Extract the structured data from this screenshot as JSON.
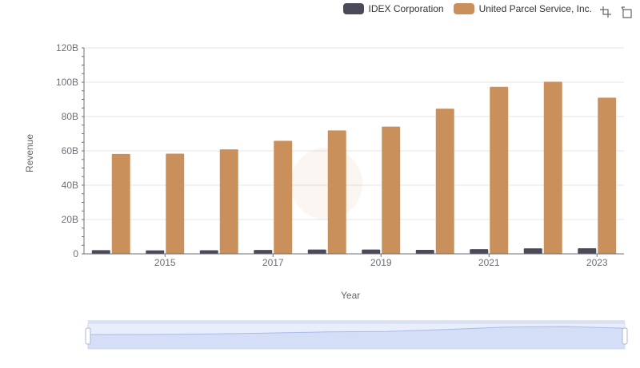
{
  "legend": {
    "items": [
      {
        "label": "IDEX Corporation",
        "color": "#4b4a5a"
      },
      {
        "label": "United Parcel Service, Inc.",
        "color": "#c9905c"
      }
    ]
  },
  "toolbox": {
    "zoom_icon": "zoom-icon",
    "restore_icon": "restore-icon"
  },
  "chart_data": {
    "type": "bar",
    "xlabel": "Year",
    "ylabel": "Revenue",
    "categories": [
      "2014",
      "2015",
      "2016",
      "2017",
      "2018",
      "2019",
      "2020",
      "2021",
      "2022",
      "2023"
    ],
    "x_tick_labels": [
      "2015",
      "2017",
      "2019",
      "2021",
      "2023"
    ],
    "y_tick_labels": [
      "0",
      "20B",
      "40B",
      "60B",
      "80B",
      "100B",
      "120B"
    ],
    "ylim": [
      0,
      120
    ],
    "y_unit": "B",
    "grid": true,
    "legend_position": "top-right",
    "series": [
      {
        "name": "IDEX Corporation",
        "color": "#4b4a5a",
        "values": [
          2.15,
          2.02,
          2.11,
          2.29,
          2.48,
          2.49,
          2.35,
          2.76,
          3.18,
          3.27
        ]
      },
      {
        "name": "United Parcel Service, Inc.",
        "color": "#c9905c",
        "values": [
          58.2,
          58.4,
          60.9,
          65.9,
          71.9,
          74.1,
          84.6,
          97.3,
          100.3,
          91.0
        ]
      }
    ]
  }
}
